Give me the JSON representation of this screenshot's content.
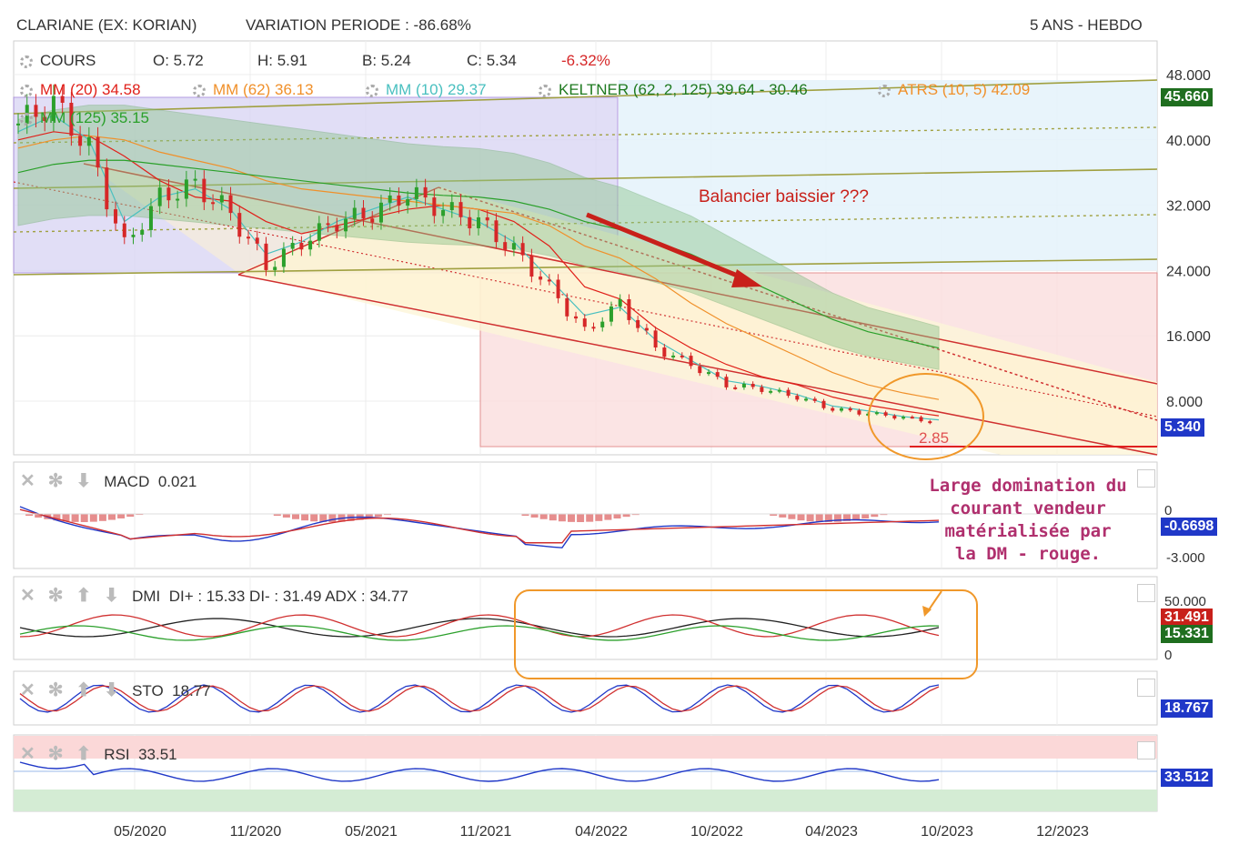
{
  "header": {
    "title": "CLARIANE (EX: KORIAN)",
    "variation": "VARIATION PERIODE : -86.68%",
    "period": "5 ANS - HEBDO"
  },
  "ohlc": {
    "label": "COURS",
    "open": "O: 5.72",
    "high": "H: 5.91",
    "low": "B: 5.24",
    "close": "C: 5.34",
    "change": "-6.32%"
  },
  "indicators": {
    "mm20": "MM (20) 34.58",
    "mm62": "MM (62) 36.13",
    "mm10": "MM (10) 29.37",
    "keltner": "KELTNER (62, 2, 125) 39.64 - 30.46",
    "atrs": "ATRS (10, 5) 42.09",
    "mm125": "MM (125) 35.15"
  },
  "colors": {
    "mm20": "#e0201a",
    "mm62": "#f0902a",
    "mm10": "#4ac0c0",
    "keltner": "#1f7a1f",
    "mm125": "#2aa02a",
    "candle_up": "#2ca02c",
    "candle_down": "#d62728",
    "pill_green": "#1f6e1f",
    "pill_blue": "#2038c8",
    "pill_red": "#c8201a",
    "annotation": "#b0306e"
  },
  "price_axis": {
    "ticks": [
      "48.000",
      "40.000",
      "32.000",
      "24.000",
      "16.000",
      "8.000"
    ],
    "tag_top": "45.660",
    "tag_last": "5.340"
  },
  "x_axis": {
    "ticks": [
      "05/2020",
      "11/2020",
      "05/2021",
      "11/2021",
      "04/2022",
      "10/2022",
      "04/2023",
      "10/2023",
      "12/2023"
    ]
  },
  "annotations": {
    "balancier": "Balancier baissier ???",
    "level": "2.85",
    "comment_lines": [
      "Large domination du",
      "courant vendeur",
      "matérialisée par",
      "la DM - rouge."
    ]
  },
  "macd": {
    "label": "MACD",
    "value": "0.021",
    "axis_ticks": [
      "0",
      "-3.000"
    ],
    "tag": "-0.6698"
  },
  "dmi": {
    "label": "DMI",
    "values": "DI+ : 15.33 DI- : 31.49 ADX : 34.77",
    "axis_ticks": [
      "50.000",
      "0"
    ],
    "tag_red": "31.491",
    "tag_green": "15.331"
  },
  "sto": {
    "label": "STO",
    "value": "18.77",
    "tag": "18.767"
  },
  "rsi": {
    "label": "RSI",
    "value": "33.51",
    "tag": "33.512"
  },
  "chart_data": {
    "type": "line",
    "title": "CLARIANE (EX: KORIAN)",
    "x": [
      "2019-10",
      "2019-12",
      "2020-02",
      "2020-03",
      "2020-05",
      "2020-07",
      "2020-09",
      "2020-11",
      "2021-01",
      "2021-03",
      "2021-05",
      "2021-07",
      "2021-09",
      "2021-11",
      "2022-01",
      "2022-02",
      "2022-03",
      "2022-04",
      "2022-06",
      "2022-08",
      "2022-10",
      "2022-12",
      "2023-02",
      "2023-04",
      "2023-06",
      "2023-08",
      "2023-10"
    ],
    "series": [
      {
        "name": "COURS",
        "values": [
          42.0,
          44.5,
          39.0,
          27.0,
          33.0,
          34.5,
          31.0,
          24.5,
          27.5,
          30.0,
          31.0,
          33.5,
          31.5,
          30.0,
          26.5,
          22.0,
          16.5,
          20.0,
          14.5,
          12.5,
          10.0,
          9.5,
          8.5,
          7.0,
          6.5,
          6.0,
          5.34
        ]
      },
      {
        "name": "MM (20)",
        "values": [
          40.0,
          41.0,
          40.5,
          38.0,
          35.0,
          33.0,
          32.5,
          30.0,
          28.5,
          29.5,
          30.5,
          31.5,
          32.0,
          31.5,
          30.0,
          27.0,
          22.0,
          20.5,
          17.0,
          14.5,
          12.5,
          11.0,
          10.0,
          8.5,
          7.5,
          6.8,
          6.2
        ]
      },
      {
        "name": "MM (62)",
        "values": [
          39.0,
          40.0,
          40.5,
          40.0,
          38.5,
          37.5,
          36.5,
          35.0,
          34.0,
          33.5,
          33.0,
          32.5,
          32.0,
          31.5,
          31.0,
          29.5,
          27.0,
          25.5,
          23.0,
          20.0,
          17.5,
          15.5,
          13.5,
          11.5,
          10.0,
          9.0,
          8.2
        ]
      },
      {
        "name": "MM (10)",
        "values": [
          41.0,
          43.0,
          40.0,
          30.0,
          33.0,
          34.0,
          31.5,
          26.0,
          27.5,
          30.0,
          31.5,
          33.0,
          31.5,
          30.0,
          27.5,
          23.0,
          18.5,
          19.5,
          15.5,
          13.0,
          10.5,
          9.8,
          8.8,
          7.4,
          6.8,
          6.1,
          5.7
        ]
      },
      {
        "name": "MM (125)",
        "values": [
          36.0,
          37.0,
          37.5,
          37.5,
          37.0,
          36.5,
          36.0,
          35.5,
          35.0,
          34.5,
          34.0,
          33.5,
          33.2,
          33.0,
          32.5,
          31.5,
          30.0,
          29.0,
          27.5,
          26.0,
          24.0,
          22.0,
          20.0,
          18.0,
          16.5,
          15.5,
          14.5
        ]
      }
    ],
    "ylim": [
      0,
      52
    ],
    "xlabel": "",
    "ylabel": "",
    "grid": true,
    "legend": "top-left"
  }
}
